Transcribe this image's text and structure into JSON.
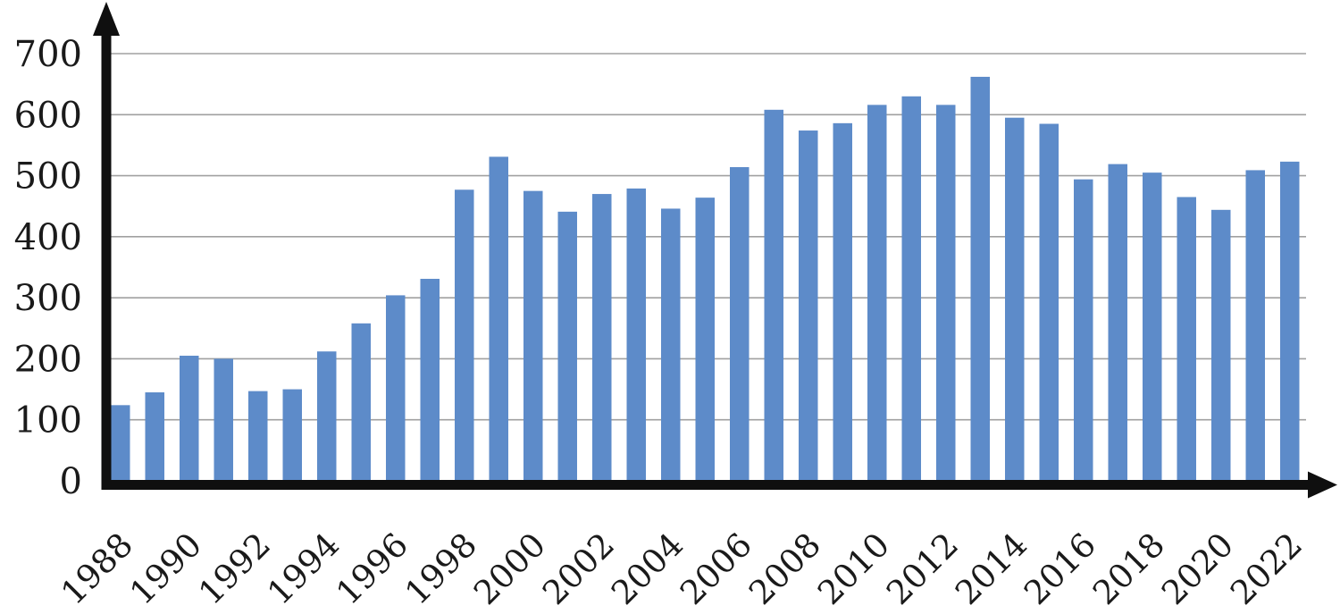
{
  "chart_data": {
    "type": "bar",
    "title": "",
    "xlabel": "",
    "ylabel": "",
    "x": [
      1988,
      1989,
      1990,
      1991,
      1992,
      1993,
      1994,
      1995,
      1996,
      1997,
      1998,
      1999,
      2000,
      2001,
      2002,
      2003,
      2004,
      2005,
      2006,
      2007,
      2008,
      2009,
      2010,
      2011,
      2012,
      2013,
      2014,
      2015,
      2016,
      2017,
      2018,
      2019,
      2020,
      2021,
      2022
    ],
    "values": [
      124,
      145,
      205,
      200,
      147,
      150,
      212,
      258,
      304,
      331,
      477,
      531,
      475,
      441,
      470,
      479,
      446,
      464,
      514,
      608,
      574,
      586,
      616,
      630,
      616,
      662,
      595,
      585,
      494,
      519,
      505,
      465,
      444,
      509,
      523
    ],
    "ylim": [
      0,
      700
    ],
    "yticks": [
      0,
      100,
      200,
      300,
      400,
      500,
      600,
      700
    ],
    "xtick_labels": [
      "1988",
      "1990",
      "1992",
      "1994",
      "1996",
      "1998",
      "2000",
      "2002",
      "2004",
      "2006",
      "2008",
      "2010",
      "2012",
      "2014",
      "2016",
      "2018",
      "2020",
      "2022"
    ],
    "x_label_rotation_deg": -45,
    "grid": "horizontal",
    "legend": "none",
    "axis_arrows": true,
    "colors": {
      "bar": "#5D8BC9",
      "gridline": "#a0a0a0",
      "axis": "#0f0f0f",
      "label": "#1a1a1a",
      "background": "#ffffff"
    }
  }
}
